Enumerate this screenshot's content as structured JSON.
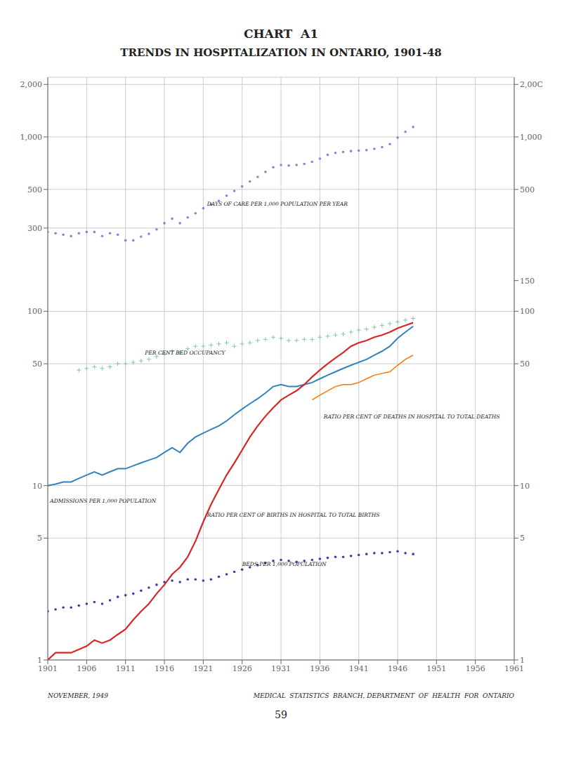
{
  "chart_data": {
    "type": "line",
    "title": "CHART  A1",
    "subtitle": "TRENDS IN HOSPITALIZATION IN ONTARIO, 1901-48",
    "footer": [
      "NOVEMBER, 1949",
      "MEDICAL  STATISTICS  BRANCH, DEPARTMENT  OF  HEALTH  FOR  ONTARIO"
    ],
    "page_number": "59",
    "log": "y",
    "grid": true,
    "x": [
      1901,
      1902,
      1903,
      1904,
      1905,
      1906,
      1907,
      1908,
      1909,
      1910,
      1911,
      1912,
      1913,
      1914,
      1915,
      1916,
      1917,
      1918,
      1919,
      1920,
      1921,
      1922,
      1923,
      1924,
      1925,
      1926,
      1927,
      1928,
      1929,
      1930,
      1931,
      1932,
      1933,
      1934,
      1935,
      1936,
      1937,
      1938,
      1939,
      1940,
      1941,
      1942,
      1943,
      1944,
      1945,
      1946,
      1947,
      1948
    ],
    "xlim": [
      1901,
      1961
    ],
    "xticks": [
      1901,
      1906,
      1911,
      1916,
      1921,
      1926,
      1931,
      1936,
      1941,
      1946,
      1951,
      1956,
      1961
    ],
    "ylim": [
      1,
      2200
    ],
    "yticks": [
      {
        "value": 2000,
        "label": "2,000"
      },
      {
        "value": 1000,
        "label": "1,000"
      },
      500,
      300,
      100,
      50,
      10,
      5,
      1
    ],
    "y2lim": [
      1,
      2200
    ],
    "y2ticks": [
      {
        "value": 2000,
        "label": "2,00C"
      },
      {
        "value": 1000,
        "label": "1,000"
      },
      500,
      150,
      100,
      50,
      10,
      5,
      1
    ],
    "series": [
      {
        "line_style": "none",
        "marker": "dot",
        "values": [
          285,
          280,
          275,
          270,
          280,
          285,
          285,
          270,
          280,
          275,
          255,
          255,
          268,
          278,
          295,
          320,
          340,
          320,
          345,
          365,
          390,
          410,
          430,
          460,
          490,
          520,
          555,
          590,
          630,
          670,
          690,
          685,
          690,
          700,
          720,
          750,
          790,
          810,
          820,
          830,
          835,
          840,
          855,
          875,
          910,
          990,
          1070,
          1140
        ]
      },
      {
        "line_style": "none",
        "marker": "plus",
        "values": [
          null,
          null,
          null,
          null,
          46,
          47,
          48,
          47,
          48,
          50,
          50,
          51,
          52,
          53,
          55,
          57,
          59,
          58,
          61,
          63,
          63,
          64,
          65,
          66,
          63,
          65,
          66,
          68,
          69,
          71,
          70,
          68,
          68,
          69,
          69,
          71,
          72,
          73,
          74,
          76,
          78,
          79,
          81,
          83,
          85,
          87,
          89,
          91
        ]
      },
      {
        "line_style": "solid",
        "marker": "none",
        "values": [
          10,
          10.2,
          10.5,
          10.5,
          11,
          11.5,
          12,
          11.5,
          12,
          12.5,
          12.5,
          13,
          13.5,
          14,
          14.5,
          15.5,
          16.5,
          15.5,
          17.5,
          19,
          20,
          21,
          22,
          23.5,
          25.5,
          27.5,
          29.5,
          31.5,
          34,
          37,
          38,
          37,
          37,
          38,
          39,
          41,
          43,
          45,
          47,
          49,
          51,
          53,
          56,
          59,
          63,
          70,
          76,
          82
        ]
      },
      {
        "line_style": "solid",
        "marker": "none",
        "values": [
          null,
          null,
          null,
          null,
          null,
          null,
          null,
          null,
          null,
          null,
          null,
          null,
          null,
          null,
          null,
          null,
          null,
          null,
          null,
          null,
          null,
          null,
          null,
          null,
          null,
          null,
          null,
          null,
          null,
          null,
          null,
          null,
          null,
          null,
          31,
          33,
          35,
          37,
          38,
          38,
          39,
          41,
          43,
          44,
          45,
          49,
          53,
          56
        ]
      },
      {
        "line_style": "solid",
        "marker": "none",
        "values": [
          1.0,
          1.1,
          1.1,
          1.1,
          1.15,
          1.2,
          1.3,
          1.25,
          1.3,
          1.4,
          1.5,
          1.7,
          1.9,
          2.1,
          2.4,
          2.7,
          3.1,
          3.4,
          3.9,
          4.8,
          6.2,
          7.8,
          9.5,
          11.5,
          13.5,
          16,
          19,
          22,
          25,
          28,
          31,
          33,
          35,
          38,
          42,
          46,
          50,
          54,
          58,
          63,
          66,
          68,
          71,
          73,
          76,
          80,
          83,
          86
        ]
      },
      {
        "line_style": "none",
        "marker": "dot",
        "values": [
          1.9,
          1.95,
          2.0,
          2.0,
          2.05,
          2.1,
          2.15,
          2.1,
          2.2,
          2.3,
          2.35,
          2.4,
          2.5,
          2.6,
          2.7,
          2.8,
          2.85,
          2.8,
          2.9,
          2.9,
          2.85,
          2.9,
          3.0,
          3.1,
          3.2,
          3.3,
          3.4,
          3.5,
          3.6,
          3.7,
          3.75,
          3.7,
          3.65,
          3.7,
          3.75,
          3.8,
          3.85,
          3.9,
          3.9,
          3.95,
          4.0,
          4.05,
          4.1,
          4.1,
          4.15,
          4.2,
          4.1,
          4.05
        ]
      }
    ],
    "annotations": [
      {
        "text": "DAYS OF CARE PER 1,000 POPULATION  PER YEAR",
        "x": 1921.5,
        "y": 415
      },
      {
        "text": "PER CENT BED OCCUPANCY",
        "x": 1913.5,
        "y": 58
      },
      {
        "text": "ADMISSIONS PER 1,000 POPULATION",
        "x": 1901.3,
        "y": 8.2
      },
      {
        "text": "RATIO PER CENT OF DEATHS IN HOSPITAL  TO TOTAL DEATHS",
        "x": 1936.5,
        "y": 25
      },
      {
        "text": "RATIO PER CENT OF BIRTHS IN HOSPITAL  TO TOTAL  BIRTHS",
        "x": 1921.5,
        "y": 6.8
      },
      {
        "text": "BEDS PER 1,000 POPULATION",
        "x": 1926,
        "y": 3.55
      }
    ]
  }
}
